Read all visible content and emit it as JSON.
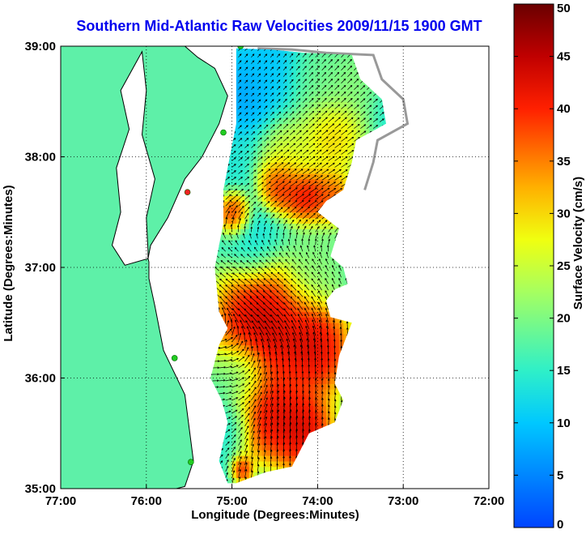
{
  "colors": {
    "title": "#0000ee",
    "land": "#5ef0a8",
    "coast_ink": "#000000",
    "shelf_contour": "#999999",
    "arrow": "#000000",
    "site_marker": "#22cc22",
    "site_marker_alt": "#ee2222"
  },
  "icons": {
    "site_marker": "circle"
  },
  "chart_data": {
    "type": "heatmap",
    "title": "Southern Mid-Atlantic Raw Velocities 2009/11/15 1900 GMT",
    "xlabel": "Longitude (Degrees:Minutes)",
    "ylabel": "Latitude (Degrees:Minutes)",
    "xlim": [
      -77,
      -72
    ],
    "ylim": [
      35,
      39
    ],
    "x_ticks": [
      {
        "value": -77,
        "label": "77:00"
      },
      {
        "value": -76,
        "label": "76:00"
      },
      {
        "value": -75,
        "label": "75:00"
      },
      {
        "value": -74,
        "label": "74:00"
      },
      {
        "value": -73,
        "label": "73:00"
      },
      {
        "value": -72,
        "label": "72:00"
      }
    ],
    "y_ticks": [
      {
        "value": 35,
        "label": "35:00"
      },
      {
        "value": 36,
        "label": "36:00"
      },
      {
        "value": 37,
        "label": "37:00"
      },
      {
        "value": 38,
        "label": "38:00"
      },
      {
        "value": 39,
        "label": "39:00"
      }
    ],
    "grid": "dotted",
    "colorbar": {
      "label": "Surface Velocity (cm/s)",
      "min": 0,
      "max": 50,
      "colormap": "jet",
      "ticks": [
        {
          "value": 0,
          "label": "0"
        },
        {
          "value": 5,
          "label": "5"
        },
        {
          "value": 10,
          "label": "10"
        },
        {
          "value": 15,
          "label": "15"
        },
        {
          "value": 20,
          "label": "20"
        },
        {
          "value": 25,
          "label": "25"
        },
        {
          "value": 30,
          "label": "30"
        },
        {
          "value": 35,
          "label": "35"
        },
        {
          "value": 40,
          "label": "40"
        },
        {
          "value": 45,
          "label": "45"
        },
        {
          "value": 50,
          "label": "50"
        }
      ]
    },
    "coverage": [
      [
        -74.95,
        38.98
      ],
      [
        -74.55,
        38.97
      ],
      [
        -74.15,
        38.94
      ],
      [
        -73.6,
        38.92
      ],
      [
        -73.5,
        38.7
      ],
      [
        -73.25,
        38.52
      ],
      [
        -73.2,
        38.3
      ],
      [
        -73.55,
        38.15
      ],
      [
        -73.6,
        37.95
      ],
      [
        -73.7,
        37.7
      ],
      [
        -73.9,
        37.6
      ],
      [
        -74.0,
        37.5
      ],
      [
        -73.75,
        37.35
      ],
      [
        -73.85,
        37.1
      ],
      [
        -73.7,
        37.0
      ],
      [
        -73.65,
        36.85
      ],
      [
        -73.8,
        36.8
      ],
      [
        -73.9,
        36.7
      ],
      [
        -73.85,
        36.55
      ],
      [
        -73.6,
        36.5
      ],
      [
        -73.75,
        36.2
      ],
      [
        -73.8,
        35.95
      ],
      [
        -73.7,
        35.8
      ],
      [
        -73.8,
        35.6
      ],
      [
        -74.1,
        35.5
      ],
      [
        -74.3,
        35.2
      ],
      [
        -74.6,
        35.15
      ],
      [
        -74.95,
        35.05
      ],
      [
        -75.05,
        35.05
      ],
      [
        -75.15,
        35.25
      ],
      [
        -75.05,
        35.6
      ],
      [
        -75.12,
        35.8
      ],
      [
        -75.25,
        36.0
      ],
      [
        -75.15,
        36.3
      ],
      [
        -75.05,
        36.45
      ],
      [
        -75.15,
        36.6
      ],
      [
        -75.2,
        37.0
      ],
      [
        -75.1,
        37.4
      ],
      [
        -75.1,
        37.7
      ],
      [
        -75.05,
        37.9
      ],
      [
        -74.95,
        38.3
      ],
      [
        -74.95,
        38.7
      ]
    ],
    "speed_field": {
      "background": 14,
      "features": [
        {
          "lon": -74.6,
          "lat": 38.8,
          "value": 9,
          "radius": 0.3
        },
        {
          "lon": -74.9,
          "lat": 38.55,
          "value": 6,
          "radius": 0.25
        },
        {
          "lon": -74.0,
          "lat": 38.7,
          "value": 20,
          "radius": 0.3
        },
        {
          "lon": -73.6,
          "lat": 38.7,
          "value": 22,
          "radius": 0.25
        },
        {
          "lon": -73.85,
          "lat": 38.15,
          "value": 34,
          "radius": 0.3
        },
        {
          "lon": -74.35,
          "lat": 38.0,
          "value": 28,
          "radius": 0.25
        },
        {
          "lon": -74.45,
          "lat": 37.72,
          "value": 46,
          "radius": 0.2
        },
        {
          "lon": -74.15,
          "lat": 37.62,
          "value": 48,
          "radius": 0.2
        },
        {
          "lon": -73.85,
          "lat": 37.6,
          "value": 42,
          "radius": 0.2
        },
        {
          "lon": -75.0,
          "lat": 37.45,
          "value": 47,
          "radius": 0.15
        },
        {
          "lon": -74.8,
          "lat": 37.2,
          "value": 12,
          "radius": 0.25
        },
        {
          "lon": -74.0,
          "lat": 37.0,
          "value": 22,
          "radius": 0.3
        },
        {
          "lon": -74.7,
          "lat": 36.45,
          "value": 52,
          "radius": 0.45
        },
        {
          "lon": -74.05,
          "lat": 36.25,
          "value": 50,
          "radius": 0.35
        },
        {
          "lon": -74.6,
          "lat": 35.65,
          "value": 48,
          "radius": 0.35
        },
        {
          "lon": -74.2,
          "lat": 35.5,
          "value": 50,
          "radius": 0.3
        },
        {
          "lon": -74.95,
          "lat": 36.0,
          "value": 14,
          "radius": 0.25
        },
        {
          "lon": -75.05,
          "lat": 35.55,
          "value": 11,
          "radius": 0.2
        },
        {
          "lon": -74.9,
          "lat": 35.15,
          "value": 44,
          "radius": 0.1
        }
      ]
    },
    "flow_features": [
      {
        "lon": -74.4,
        "lat": 38.4,
        "direction_deg": 40,
        "strength": 1.0
      },
      {
        "lon": -74.2,
        "lat": 37.8,
        "direction_deg": 60,
        "strength": 1.2
      },
      {
        "lon": -74.4,
        "lat": 36.6,
        "direction_deg": 300,
        "strength": 1.6
      },
      {
        "lon": -73.9,
        "lat": 36.1,
        "direction_deg": 10,
        "strength": 1.8
      },
      {
        "lon": -74.3,
        "lat": 35.5,
        "direction_deg": 0,
        "strength": 1.6
      },
      {
        "lon": -74.9,
        "lat": 36.0,
        "direction_deg": 100,
        "strength": 0.8
      }
    ],
    "sites": [
      {
        "lon": -74.9,
        "lat": 39.0,
        "color": "site_marker"
      },
      {
        "lon": -75.1,
        "lat": 38.22,
        "color": "site_marker"
      },
      {
        "lon": -75.52,
        "lat": 37.68,
        "color": "site_marker_alt"
      },
      {
        "lon": -75.67,
        "lat": 36.18,
        "color": "site_marker"
      },
      {
        "lon": -75.48,
        "lat": 35.24,
        "color": "site_marker"
      }
    ],
    "coastline": [
      [
        -77.0,
        39.0
      ],
      [
        -75.55,
        39.0
      ],
      [
        -75.4,
        38.9
      ],
      [
        -75.2,
        38.8
      ],
      [
        -75.05,
        38.55
      ],
      [
        -75.15,
        38.3
      ],
      [
        -75.35,
        38.0
      ],
      [
        -75.55,
        37.8
      ],
      [
        -75.75,
        37.45
      ],
      [
        -75.95,
        37.2
      ],
      [
        -75.98,
        37.08
      ],
      [
        -75.97,
        37.05
      ],
      [
        -75.97,
        36.9
      ],
      [
        -75.9,
        36.65
      ],
      [
        -75.8,
        36.25
      ],
      [
        -75.55,
        35.85
      ],
      [
        -75.5,
        35.55
      ],
      [
        -75.45,
        35.25
      ],
      [
        -75.55,
        35.02
      ],
      [
        -75.65,
        35.0
      ],
      [
        -77.0,
        35.0
      ]
    ],
    "bay": [
      [
        -76.05,
        38.95
      ],
      [
        -76.3,
        38.6
      ],
      [
        -76.2,
        38.25
      ],
      [
        -76.35,
        37.9
      ],
      [
        -76.3,
        37.5
      ],
      [
        -76.4,
        37.2
      ],
      [
        -76.25,
        37.02
      ],
      [
        -75.98,
        37.08
      ],
      [
        -75.98,
        37.15
      ],
      [
        -76.0,
        37.45
      ],
      [
        -75.9,
        37.8
      ],
      [
        -76.05,
        38.2
      ],
      [
        -76.0,
        38.6
      ]
    ]
  }
}
